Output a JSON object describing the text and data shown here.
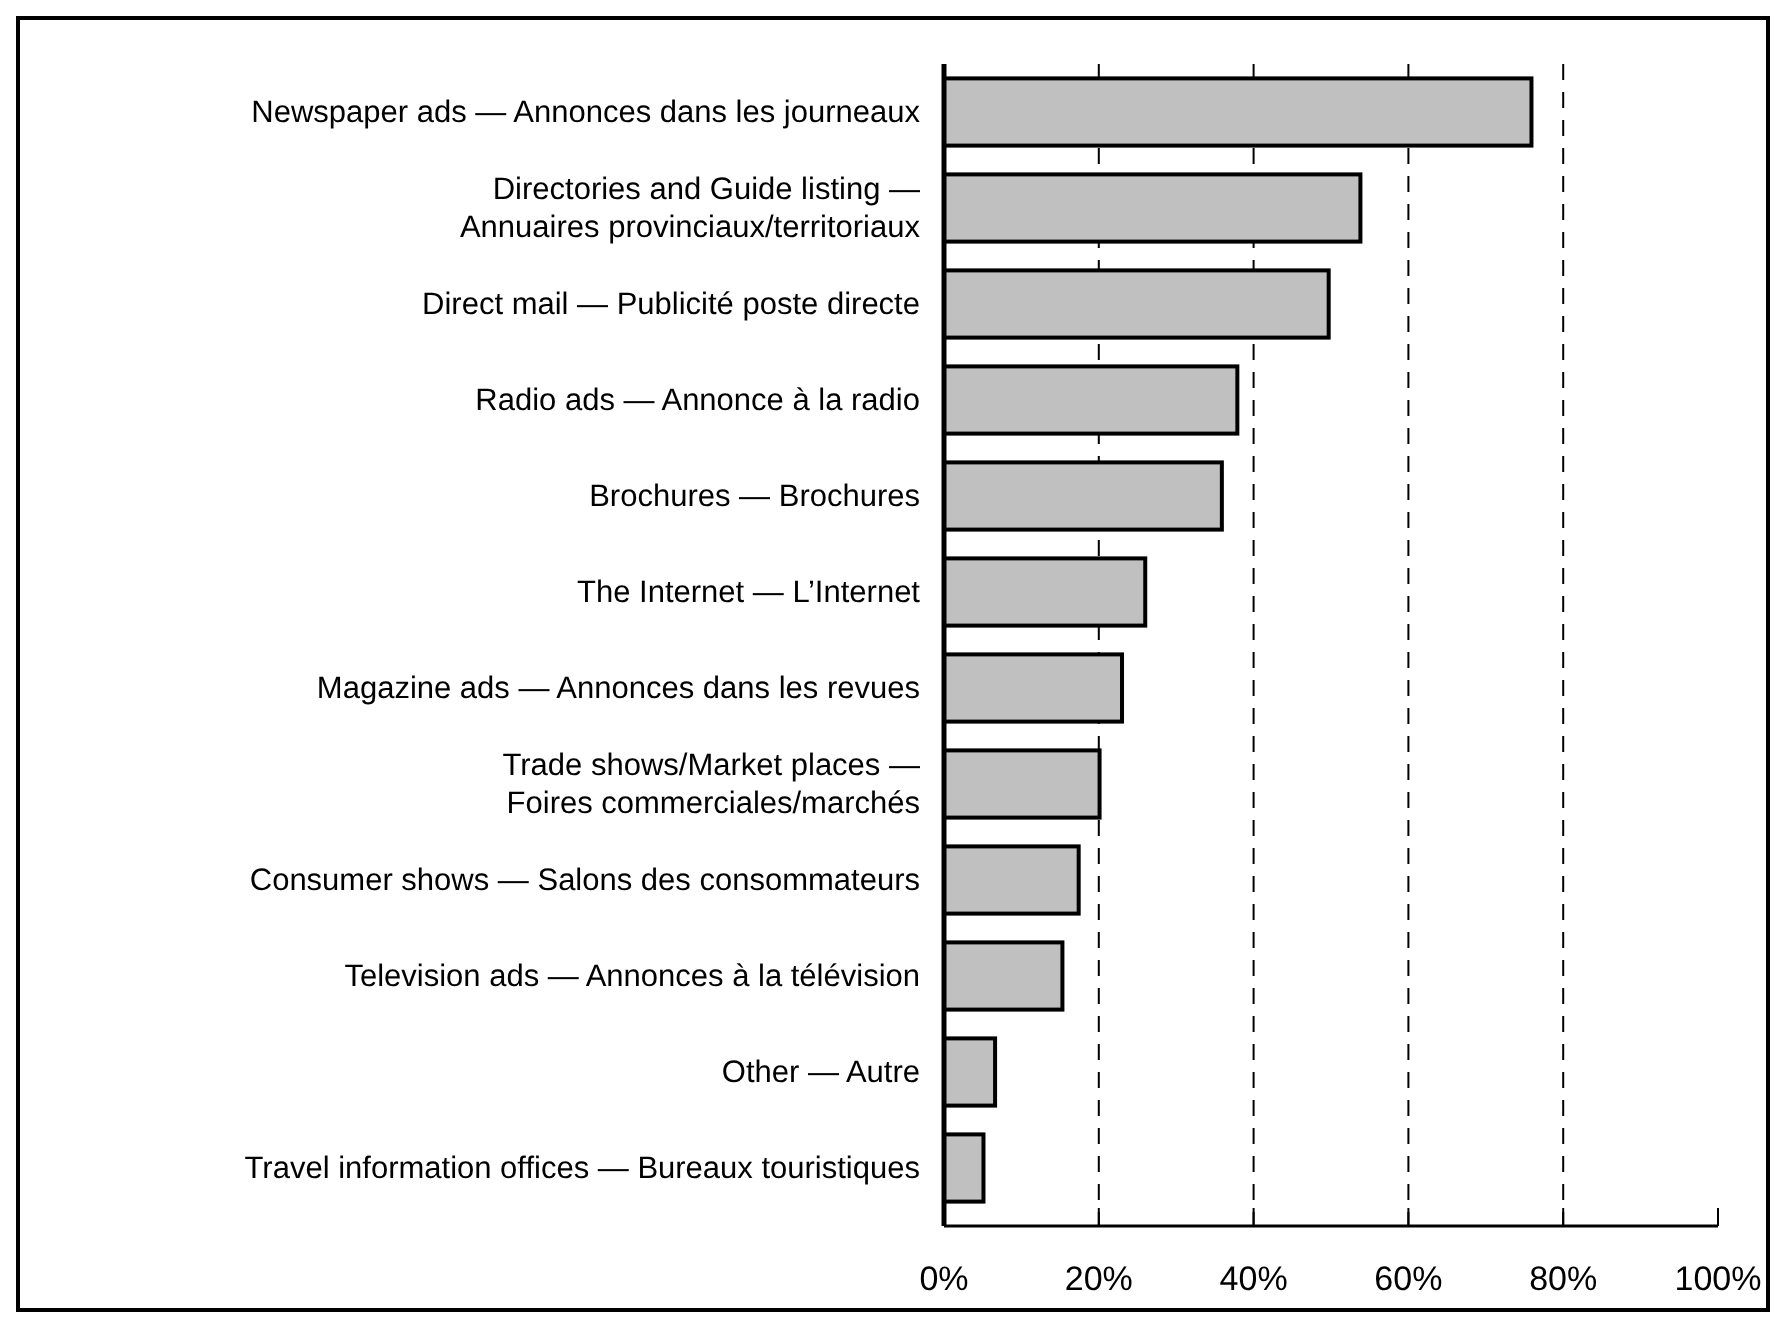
{
  "chart_data": {
    "type": "bar",
    "orientation": "horizontal",
    "categories": [
      "Newspaper ads — Annonces dans les journeaux",
      "Directories and Guide listing — Annuaires provinciaux/territoriaux",
      "Direct mail — Publicité poste directe",
      "Radio ads — Annonce à la radio",
      "Brochures — Brochures",
      "The Internet — L’Internet",
      "Magazine ads — Annonces dans les revues",
      "Trade shows/Market places — Foires commerciales/marchés",
      "Consumer shows — Salons des consommateurs",
      "Television ads — Annonces à la télévision",
      "Other — Autre",
      "Travel information offices — Bureaux touristiques"
    ],
    "values": [
      75.9,
      53.8,
      49.7,
      37.9,
      35.9,
      26.0,
      23.0,
      20.1,
      17.4,
      15.3,
      6.6,
      5.1
    ],
    "color": "#c0c0c0",
    "xlim": [
      0,
      100
    ],
    "xticks": [
      {
        "value": 0,
        "label": "0%"
      },
      {
        "value": 20,
        "label": "20%"
      },
      {
        "value": 40,
        "label": "40%"
      },
      {
        "value": 60,
        "label": "60%"
      },
      {
        "value": 80,
        "label": "80%"
      },
      {
        "value": 100,
        "label": "100%"
      }
    ],
    "grid": "x"
  }
}
